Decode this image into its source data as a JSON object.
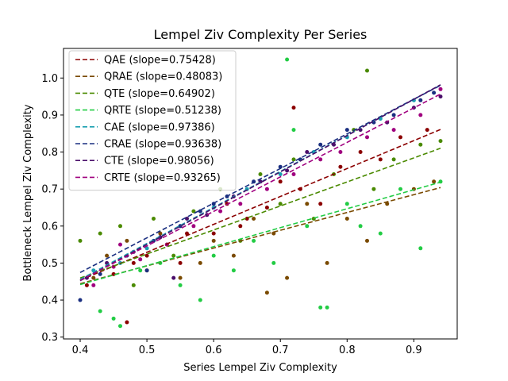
{
  "chart_data": {
    "type": "scatter",
    "title": "Lempel Ziv Complexity Per Series",
    "xlabel": "Series Lempel Ziv Complexity",
    "ylabel": "Bottleneck Lempel Ziv Complexity",
    "xlim": [
      0.375,
      0.965
    ],
    "ylim": [
      0.295,
      1.08
    ],
    "xticks": [
      0.4,
      0.5,
      0.6,
      0.7,
      0.8,
      0.9
    ],
    "xtick_labels": [
      "0.4",
      "0.5",
      "0.6",
      "0.7",
      "0.8",
      "0.9"
    ],
    "yticks": [
      0.3,
      0.4,
      0.5,
      0.6,
      0.7,
      0.8,
      0.9,
      1.0
    ],
    "ytick_labels": [
      "0.3",
      "0.4",
      "0.5",
      "0.6",
      "0.7",
      "0.8",
      "0.9",
      "1.0"
    ],
    "grid": false,
    "legend_position": "top-left",
    "series": [
      {
        "name": "QAE",
        "label": "QAE (slope=0.75428)",
        "color": "#8b0000",
        "slope": 0.75428,
        "intercept": 0.152,
        "x_range": [
          0.4,
          0.94
        ],
        "points": [
          [
            0.41,
            0.44
          ],
          [
            0.45,
            0.47
          ],
          [
            0.48,
            0.5
          ],
          [
            0.5,
            0.52
          ],
          [
            0.53,
            0.55
          ],
          [
            0.56,
            0.58
          ],
          [
            0.6,
            0.58
          ],
          [
            0.62,
            0.66
          ],
          [
            0.65,
            0.62
          ],
          [
            0.68,
            0.65
          ],
          [
            0.7,
            0.72
          ],
          [
            0.73,
            0.7
          ],
          [
            0.76,
            0.66
          ],
          [
            0.79,
            0.76
          ],
          [
            0.82,
            0.8
          ],
          [
            0.85,
            0.78
          ],
          [
            0.88,
            0.84
          ],
          [
            0.92,
            0.86
          ],
          [
            0.47,
            0.34
          ],
          [
            0.72,
            0.92
          ],
          [
            0.55,
            0.5
          ],
          [
            0.64,
            0.6
          ]
        ]
      },
      {
        "name": "QRAE",
        "label": "QRAE (slope=0.48083)",
        "color": "#7a4a00",
        "slope": 0.48083,
        "intercept": 0.252,
        "x_range": [
          0.4,
          0.94
        ],
        "points": [
          [
            0.42,
            0.46
          ],
          [
            0.44,
            0.52
          ],
          [
            0.47,
            0.56
          ],
          [
            0.5,
            0.48
          ],
          [
            0.52,
            0.58
          ],
          [
            0.55,
            0.46
          ],
          [
            0.58,
            0.5
          ],
          [
            0.6,
            0.56
          ],
          [
            0.63,
            0.52
          ],
          [
            0.66,
            0.62
          ],
          [
            0.69,
            0.58
          ],
          [
            0.71,
            0.46
          ],
          [
            0.74,
            0.66
          ],
          [
            0.77,
            0.5
          ],
          [
            0.8,
            0.62
          ],
          [
            0.83,
            0.56
          ],
          [
            0.86,
            0.66
          ],
          [
            0.9,
            0.7
          ],
          [
            0.93,
            0.72
          ],
          [
            0.68,
            0.42
          ]
        ]
      },
      {
        "name": "QTE",
        "label": "QTE (slope=0.64902)",
        "color": "#4a8a00",
        "slope": 0.64902,
        "intercept": 0.2,
        "x_range": [
          0.4,
          0.94
        ],
        "points": [
          [
            0.4,
            0.56
          ],
          [
            0.43,
            0.58
          ],
          [
            0.46,
            0.6
          ],
          [
            0.48,
            0.44
          ],
          [
            0.51,
            0.62
          ],
          [
            0.54,
            0.52
          ],
          [
            0.57,
            0.64
          ],
          [
            0.61,
            0.7
          ],
          [
            0.64,
            0.56
          ],
          [
            0.67,
            0.74
          ],
          [
            0.7,
            0.66
          ],
          [
            0.72,
            0.78
          ],
          [
            0.75,
            0.62
          ],
          [
            0.78,
            0.74
          ],
          [
            0.81,
            0.86
          ],
          [
            0.84,
            0.7
          ],
          [
            0.87,
            0.78
          ],
          [
            0.91,
            0.82
          ],
          [
            0.94,
            0.83
          ],
          [
            0.83,
            1.02
          ]
        ]
      },
      {
        "name": "QRTE",
        "label": "QRTE (slope=0.51238)",
        "color": "#22cc44",
        "slope": 0.51238,
        "intercept": 0.237,
        "x_range": [
          0.4,
          0.94
        ],
        "points": [
          [
            0.43,
            0.37
          ],
          [
            0.45,
            0.35
          ],
          [
            0.46,
            0.33
          ],
          [
            0.49,
            0.48
          ],
          [
            0.52,
            0.5
          ],
          [
            0.55,
            0.44
          ],
          [
            0.58,
            0.4
          ],
          [
            0.6,
            0.52
          ],
          [
            0.63,
            0.48
          ],
          [
            0.66,
            0.56
          ],
          [
            0.69,
            0.5
          ],
          [
            0.71,
            1.05
          ],
          [
            0.72,
            0.86
          ],
          [
            0.74,
            0.6
          ],
          [
            0.77,
            0.38
          ],
          [
            0.8,
            0.66
          ],
          [
            0.82,
            0.6
          ],
          [
            0.85,
            0.58
          ],
          [
            0.88,
            0.7
          ],
          [
            0.91,
            0.54
          ],
          [
            0.94,
            0.72
          ],
          [
            0.76,
            0.38
          ]
        ]
      },
      {
        "name": "CAE",
        "label": "CAE (slope=0.97386)",
        "color": "#1a9fb0",
        "slope": 0.97386,
        "intercept": 0.066,
        "x_range": [
          0.4,
          0.94
        ],
        "points": [
          [
            0.42,
            0.48
          ],
          [
            0.46,
            0.5
          ],
          [
            0.5,
            0.54
          ],
          [
            0.55,
            0.6
          ],
          [
            0.6,
            0.65
          ],
          [
            0.65,
            0.7
          ],
          [
            0.7,
            0.74
          ],
          [
            0.75,
            0.8
          ],
          [
            0.8,
            0.84
          ],
          [
            0.85,
            0.89
          ],
          [
            0.9,
            0.94
          ]
        ]
      },
      {
        "name": "CRAE",
        "label": "CRAE (slope=0.93638)",
        "color": "#1a2f80",
        "slope": 0.93638,
        "intercept": 0.1,
        "x_range": [
          0.4,
          0.94
        ],
        "points": [
          [
            0.4,
            0.4
          ],
          [
            0.43,
            0.47
          ],
          [
            0.47,
            0.52
          ],
          [
            0.51,
            0.56
          ],
          [
            0.55,
            0.6
          ],
          [
            0.58,
            0.64
          ],
          [
            0.62,
            0.68
          ],
          [
            0.66,
            0.72
          ],
          [
            0.7,
            0.76
          ],
          [
            0.73,
            0.78
          ],
          [
            0.76,
            0.82
          ],
          [
            0.8,
            0.86
          ],
          [
            0.84,
            0.88
          ],
          [
            0.87,
            0.9
          ],
          [
            0.91,
            0.94
          ],
          [
            0.93,
            0.96
          ],
          [
            0.6,
            0.66
          ],
          [
            0.5,
            0.48
          ]
        ]
      },
      {
        "name": "CTE",
        "label": "CTE (slope=0.98056)",
        "color": "#4a0f6a",
        "slope": 0.98056,
        "intercept": 0.06,
        "x_range": [
          0.4,
          0.94
        ],
        "points": [
          [
            0.41,
            0.46
          ],
          [
            0.44,
            0.5
          ],
          [
            0.48,
            0.53
          ],
          [
            0.52,
            0.57
          ],
          [
            0.56,
            0.62
          ],
          [
            0.59,
            0.63
          ],
          [
            0.63,
            0.68
          ],
          [
            0.67,
            0.72
          ],
          [
            0.71,
            0.75
          ],
          [
            0.74,
            0.8
          ],
          [
            0.78,
            0.82
          ],
          [
            0.82,
            0.86
          ],
          [
            0.86,
            0.88
          ],
          [
            0.9,
            0.92
          ],
          [
            0.94,
            0.95
          ],
          [
            0.54,
            0.46
          ]
        ]
      },
      {
        "name": "CRTE",
        "label": "CRTE (slope=0.93265)",
        "color": "#a0007f",
        "slope": 0.93265,
        "intercept": 0.08,
        "x_range": [
          0.4,
          0.94
        ],
        "points": [
          [
            0.42,
            0.44
          ],
          [
            0.45,
            0.49
          ],
          [
            0.49,
            0.51
          ],
          [
            0.53,
            0.55
          ],
          [
            0.57,
            0.6
          ],
          [
            0.61,
            0.64
          ],
          [
            0.64,
            0.66
          ],
          [
            0.68,
            0.7
          ],
          [
            0.72,
            0.74
          ],
          [
            0.76,
            0.78
          ],
          [
            0.79,
            0.8
          ],
          [
            0.83,
            0.84
          ],
          [
            0.87,
            0.86
          ],
          [
            0.91,
            0.9
          ],
          [
            0.94,
            0.97
          ],
          [
            0.46,
            0.55
          ]
        ]
      }
    ]
  }
}
